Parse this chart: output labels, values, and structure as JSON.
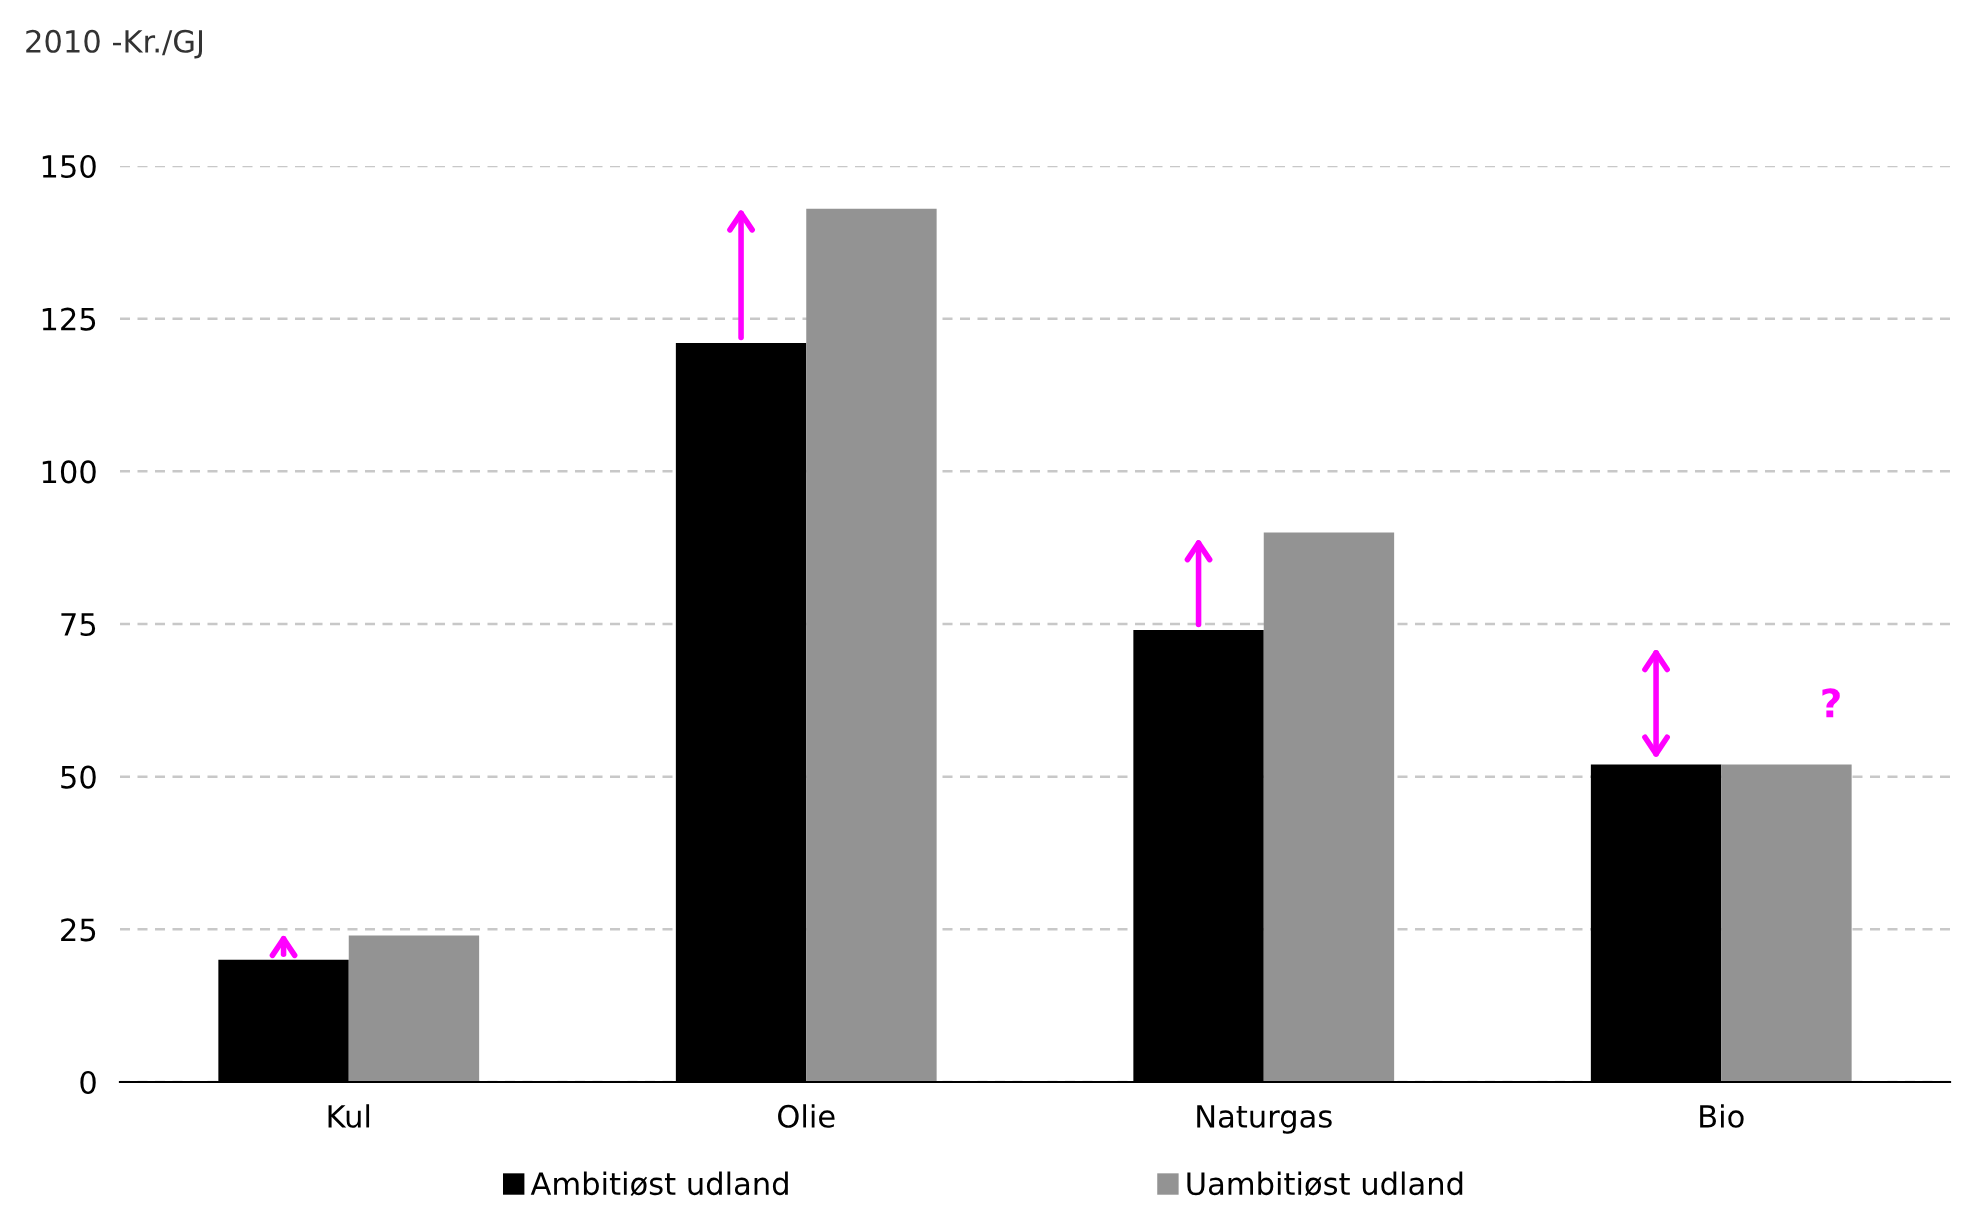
{
  "chart_data": {
    "type": "bar",
    "ylabel": "2010 -Kr./GJ",
    "categories": [
      "Kul",
      "Olie",
      "Naturgas",
      "Bio"
    ],
    "series": [
      {
        "name": "Ambitiøst udland",
        "color": "#000000",
        "values": [
          20,
          121,
          74,
          52
        ]
      },
      {
        "name": "Uambitiøst udland",
        "color": "#939393",
        "values": [
          24,
          143,
          90,
          52
        ]
      }
    ],
    "ylim": [
      0,
      150
    ],
    "yticks": [
      0,
      25,
      50,
      75,
      100,
      125,
      150
    ],
    "grid": "y",
    "legend": "bottom",
    "annotations": [
      "?"
    ]
  }
}
